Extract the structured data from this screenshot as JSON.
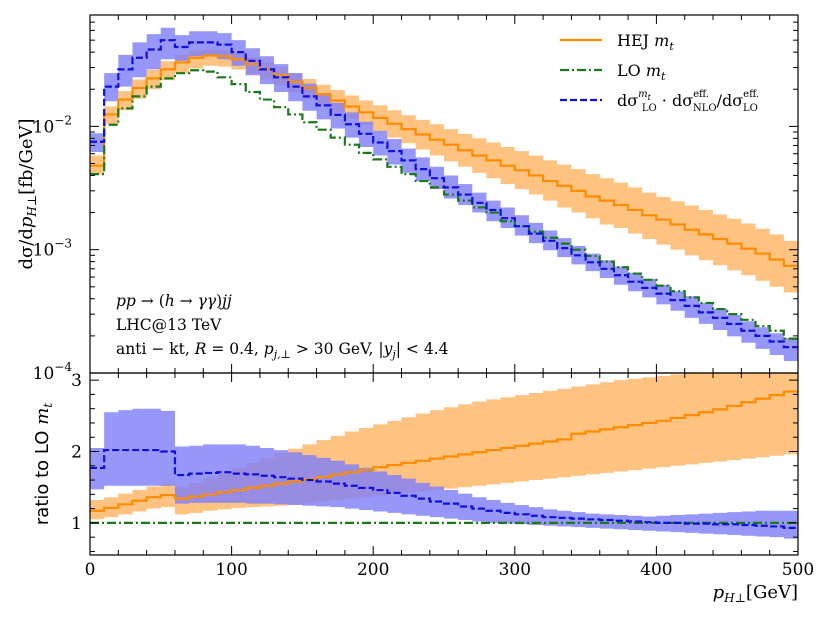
{
  "chart_data": [
    {
      "type": "line",
      "panel": "main",
      "yscale": "log",
      "xlim": [
        0,
        500
      ],
      "ylim": [
        0.0001,
        0.08
      ],
      "xlabel": "p_{H⊥} [GeV]",
      "ylabel": "dσ/dp_{H⊥} [fb/GeV]",
      "yticks": [
        "10",
        "10",
        "10"
      ],
      "ytick_exponents": [
        "−2",
        "−3",
        "−4"
      ],
      "ytick_values": [
        0.01,
        0.001,
        0.0001
      ],
      "annotations": {
        "process": "pp → (h → γγ)jj",
        "collider": "LHC@13 TeV",
        "cuts": "anti − kt, R = 0.4, p_{j,⊥} > 30 GeV, |y_j| < 4.4"
      },
      "legend_position": "top-right",
      "series": [
        {
          "name": "HEJ m_t",
          "legend": "HEJ",
          "legend_math": "m",
          "legend_sub": "t",
          "color": "#ff8c00",
          "band_color": "#ffb86b",
          "style": "solid",
          "bin_width": 10,
          "bin_start": 0,
          "values": [
            0.0048,
            0.0125,
            0.0165,
            0.0205,
            0.0245,
            0.029,
            0.033,
            0.036,
            0.0375,
            0.037,
            0.035,
            0.032,
            0.029,
            0.026,
            0.023,
            0.0205,
            0.0182,
            0.0162,
            0.0145,
            0.013,
            0.0117,
            0.0105,
            0.0095,
            0.0086,
            0.0078,
            0.0071,
            0.0064,
            0.0058,
            0.0053,
            0.0048,
            0.0044,
            0.004,
            0.0036,
            0.0033,
            0.003,
            0.0027,
            0.0025,
            0.0023,
            0.0021,
            0.0019,
            0.00175,
            0.0016,
            0.00145,
            0.00133,
            0.00122,
            0.00112,
            0.00102,
            0.00093,
            0.00083,
            0.00074
          ],
          "band_low": [
            0.0041,
            0.0105,
            0.0135,
            0.0168,
            0.02,
            0.0237,
            0.027,
            0.0295,
            0.031,
            0.0305,
            0.0289,
            0.0265,
            0.024,
            0.0214,
            0.0188,
            0.0166,
            0.0147,
            0.013,
            0.0115,
            0.0102,
            0.0091,
            0.0081,
            0.0073,
            0.0065,
            0.0058,
            0.0052,
            0.0047,
            0.0042,
            0.0038,
            0.0034,
            0.0031,
            0.0028,
            0.0025,
            0.0022,
            0.002,
            0.0018,
            0.0016,
            0.0015,
            0.00135,
            0.00122,
            0.0011,
            0.001,
            0.0009,
            0.00082,
            0.00075,
            0.00068,
            0.00062,
            0.00056,
            0.0005,
            0.00045
          ],
          "band_high": [
            0.0058,
            0.0145,
            0.0193,
            0.024,
            0.0287,
            0.0337,
            0.038,
            0.041,
            0.042,
            0.0415,
            0.0395,
            0.0365,
            0.0333,
            0.0301,
            0.027,
            0.0242,
            0.0218,
            0.0197,
            0.0178,
            0.0162,
            0.0148,
            0.0135,
            0.0123,
            0.0113,
            0.0104,
            0.0095,
            0.0087,
            0.008,
            0.0074,
            0.0068,
            0.0063,
            0.0058,
            0.0053,
            0.0049,
            0.0045,
            0.0041,
            0.0038,
            0.0035,
            0.0032,
            0.0029,
            0.00268,
            0.00247,
            0.00228,
            0.0021,
            0.00193,
            0.00178,
            0.00163,
            0.00148,
            0.00133,
            0.00118
          ]
        },
        {
          "name": "LO m_t",
          "legend": "LO",
          "legend_math": "m",
          "legend_sub": "t",
          "color": "#1a7a1a",
          "style": "dashdot",
          "bin_width": 10,
          "bin_start": 0,
          "values": [
            0.0041,
            0.0103,
            0.014,
            0.0175,
            0.021,
            0.0245,
            0.027,
            0.0285,
            0.0278,
            0.025,
            0.022,
            0.019,
            0.0165,
            0.0143,
            0.0125,
            0.0108,
            0.0094,
            0.0081,
            0.0071,
            0.0061,
            0.0054,
            0.0047,
            0.0041,
            0.0036,
            0.0032,
            0.0028,
            0.0025,
            0.0022,
            0.002,
            0.0017,
            0.00155,
            0.0014,
            0.00125,
            0.00112,
            0.001,
            0.00089,
            0.0008,
            0.00072,
            0.00064,
            0.00057,
            0.00051,
            0.00046,
            0.00041,
            0.00037,
            0.00033,
            0.0003,
            0.00027,
            0.00024,
            0.00022,
            0.00019
          ]
        },
        {
          "name": "dσ^{m_t}_{LO} · dσ^{eff.}_{NLO} / dσ^{eff.}_{LO}",
          "legend": "dσ",
          "color": "#1010dd",
          "band_color": "#8080f8",
          "style": "dashed",
          "bin_width": 10,
          "bin_start": 0,
          "values": [
            0.0075,
            0.021,
            0.029,
            0.036,
            0.042,
            0.05,
            0.044,
            0.048,
            0.048,
            0.046,
            0.04,
            0.034,
            0.029,
            0.025,
            0.021,
            0.0175,
            0.0148,
            0.0124,
            0.0104,
            0.0087,
            0.0074,
            0.0063,
            0.0053,
            0.0045,
            0.0038,
            0.0032,
            0.0028,
            0.0024,
            0.0021,
            0.0018,
            0.00155,
            0.00135,
            0.00118,
            0.00103,
            0.0009,
            0.00079,
            0.0007,
            0.00062,
            0.00055,
            0.00049,
            0.00044,
            0.00039,
            0.00035,
            0.00031,
            0.00028,
            0.00025,
            0.00022,
            0.0002,
            0.00018,
            0.000162
          ],
          "band_low": [
            0.0062,
            0.016,
            0.021,
            0.025,
            0.029,
            0.035,
            0.034,
            0.037,
            0.037,
            0.035,
            0.031,
            0.026,
            0.022,
            0.019,
            0.016,
            0.0134,
            0.0114,
            0.0096,
            0.0081,
            0.0068,
            0.0058,
            0.0049,
            0.0042,
            0.0036,
            0.0031,
            0.0026,
            0.0023,
            0.002,
            0.0017,
            0.0015,
            0.0013,
            0.00113,
            0.00099,
            0.00087,
            0.00076,
            0.00067,
            0.00059,
            0.00052,
            0.00046,
            0.00041,
            0.00036,
            0.00032,
            0.00028,
            0.00025,
            0.000223,
            0.000198,
            0.000176,
            0.000157,
            0.00014,
            0.000125
          ],
          "band_high": [
            0.0088,
            0.027,
            0.038,
            0.048,
            0.056,
            0.063,
            0.055,
            0.059,
            0.059,
            0.057,
            0.05,
            0.043,
            0.037,
            0.032,
            0.027,
            0.0222,
            0.0186,
            0.0155,
            0.013,
            0.0109,
            0.0092,
            0.0079,
            0.0066,
            0.0056,
            0.0047,
            0.004,
            0.0034,
            0.0029,
            0.0025,
            0.0022,
            0.0019,
            0.00165,
            0.00143,
            0.00124,
            0.00107,
            0.00093,
            0.00082,
            0.00073,
            0.00065,
            0.00058,
            0.00052,
            0.00046,
            0.00042,
            0.00037,
            0.00033,
            0.000295,
            0.000262,
            0.000235,
            0.00021,
            0.000192
          ]
        }
      ]
    },
    {
      "type": "line",
      "panel": "ratio",
      "xlim": [
        0,
        500
      ],
      "ylim": [
        0.55,
        3.1
      ],
      "ylabel": "ratio to LO m_t",
      "ylabel_text": "ratio to LO",
      "ylabel_math": "m",
      "ylabel_sub": "t",
      "yticks": [
        "1",
        "2",
        "3"
      ],
      "ytick_values": [
        1,
        2,
        3
      ],
      "xticks": [
        "0",
        "100",
        "200",
        "300",
        "400",
        "500"
      ],
      "xtick_values": [
        0,
        100,
        200,
        300,
        400,
        500
      ],
      "series": [
        {
          "name": "HEJ m_t / LO m_t",
          "color": "#ff8c00",
          "band_color": "#ffb86b",
          "style": "solid",
          "bin_width": 10,
          "bin_start": 0,
          "values": [
            1.17,
            1.21,
            1.26,
            1.31,
            1.36,
            1.39,
            1.34,
            1.37,
            1.4,
            1.43,
            1.46,
            1.49,
            1.52,
            1.55,
            1.58,
            1.61,
            1.64,
            1.68,
            1.71,
            1.74,
            1.78,
            1.81,
            1.84,
            1.87,
            1.9,
            1.93,
            1.96,
            1.99,
            2.02,
            2.05,
            2.08,
            2.11,
            2.14,
            2.17,
            2.25,
            2.28,
            2.31,
            2.34,
            2.37,
            2.4,
            2.43,
            2.47,
            2.51,
            2.55,
            2.59,
            2.64,
            2.69,
            2.74,
            2.79,
            2.84
          ],
          "band_low": [
            1.05,
            1.08,
            1.12,
            1.16,
            1.2,
            1.22,
            1.12,
            1.14,
            1.17,
            1.19,
            1.21,
            1.22,
            1.23,
            1.24,
            1.26,
            1.28,
            1.3,
            1.32,
            1.34,
            1.36,
            1.38,
            1.4,
            1.42,
            1.44,
            1.46,
            1.48,
            1.5,
            1.52,
            1.54,
            1.56,
            1.58,
            1.6,
            1.62,
            1.64,
            1.66,
            1.68,
            1.7,
            1.72,
            1.74,
            1.76,
            1.78,
            1.8,
            1.82,
            1.84,
            1.86,
            1.88,
            1.9,
            1.92,
            1.94,
            1.96
          ],
          "band_high": [
            1.32,
            1.36,
            1.41,
            1.46,
            1.51,
            1.55,
            1.5,
            1.56,
            1.63,
            1.7,
            1.77,
            1.84,
            1.91,
            1.98,
            2.04,
            2.1,
            2.16,
            2.22,
            2.28,
            2.33,
            2.38,
            2.43,
            2.48,
            2.53,
            2.58,
            2.62,
            2.66,
            2.7,
            2.73,
            2.76,
            2.79,
            2.82,
            2.85,
            2.88,
            2.91,
            2.94,
            2.97,
            3.0,
            3.02,
            3.04,
            3.06,
            3.08,
            3.1,
            3.1,
            3.1,
            3.1,
            3.1,
            3.1,
            3.1,
            3.1
          ]
        },
        {
          "name": "LO m_t / LO m_t",
          "color": "#1a7a1a",
          "style": "dashdot",
          "constant": 1.0
        },
        {
          "name": "dσ^{m_t}_{LO} · dσ^{eff.}_{NLO} / dσ^{eff.}_{LO} / LO m_t",
          "color": "#1010dd",
          "band_color": "#8080f8",
          "style": "dashed",
          "bin_width": 10,
          "bin_start": 0,
          "values": [
            1.77,
            2.02,
            2.02,
            2.02,
            2.02,
            2.0,
            1.67,
            1.69,
            1.7,
            1.71,
            1.69,
            1.68,
            1.66,
            1.64,
            1.62,
            1.6,
            1.58,
            1.55,
            1.52,
            1.49,
            1.46,
            1.42,
            1.38,
            1.34,
            1.3,
            1.27,
            1.23,
            1.2,
            1.17,
            1.14,
            1.12,
            1.1,
            1.08,
            1.07,
            1.06,
            1.05,
            1.04,
            1.03,
            1.02,
            1.01,
            1.0,
            1.0,
            0.99,
            0.99,
            0.98,
            0.98,
            0.97,
            0.96,
            0.95,
            0.93
          ],
          "band_low": [
            1.47,
            1.52,
            1.52,
            1.52,
            1.52,
            1.52,
            1.27,
            1.28,
            1.28,
            1.28,
            1.28,
            1.27,
            1.27,
            1.26,
            1.25,
            1.24,
            1.23,
            1.22,
            1.2,
            1.18,
            1.16,
            1.14,
            1.12,
            1.1,
            1.08,
            1.06,
            1.04,
            1.02,
            1.0,
            0.99,
            0.98,
            0.97,
            0.96,
            0.95,
            0.94,
            0.93,
            0.92,
            0.91,
            0.9,
            0.89,
            0.88,
            0.87,
            0.86,
            0.85,
            0.84,
            0.83,
            0.82,
            0.81,
            0.8,
            0.78
          ],
          "band_high": [
            2.05,
            2.55,
            2.58,
            2.6,
            2.6,
            2.57,
            2.07,
            2.08,
            2.1,
            2.1,
            2.1,
            2.08,
            2.05,
            2.02,
            1.99,
            1.95,
            1.91,
            1.87,
            1.82,
            1.77,
            1.72,
            1.67,
            1.62,
            1.56,
            1.51,
            1.46,
            1.41,
            1.36,
            1.32,
            1.28,
            1.25,
            1.22,
            1.19,
            1.17,
            1.15,
            1.13,
            1.12,
            1.11,
            1.1,
            1.09,
            1.1,
            1.11,
            1.12,
            1.13,
            1.14,
            1.15,
            1.16,
            1.17,
            1.17,
            1.17
          ]
        }
      ]
    }
  ]
}
